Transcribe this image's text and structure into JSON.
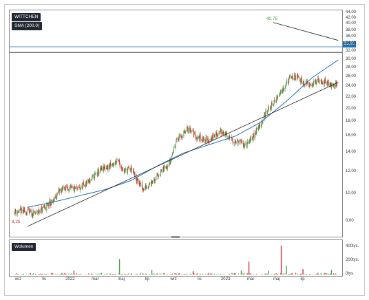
{
  "chart_data": [
    {
      "type": "candlestick",
      "series": [
        {
          "name": "WITTCHEN",
          "kind": "daily candles",
          "x": [
            "2021-10-01",
            "2021-10-15",
            "2021-11-01",
            "2021-11-15",
            "2021-12-01",
            "2021-12-15",
            "2022-01-01",
            "2022-01-15",
            "2022-02-01",
            "2022-02-15",
            "2022-03-01",
            "2022-03-15",
            "2022-04-01",
            "2022-04-15",
            "2022-05-01",
            "2022-05-15",
            "2022-06-01",
            "2022-06-15",
            "2022-07-01",
            "2022-07-15",
            "2022-08-01",
            "2022-08-15",
            "2022-09-01",
            "2022-09-15",
            "2022-10-01",
            "2022-10-15",
            "2022-11-01",
            "2022-11-15",
            "2022-12-01",
            "2022-12-15",
            "2023-01-01",
            "2023-01-15",
            "2023-02-01",
            "2023-02-15",
            "2023-03-01",
            "2023-03-15",
            "2023-04-01",
            "2023-04-15",
            "2023-05-01",
            "2023-05-15",
            "2023-06-01",
            "2023-06-15",
            "2023-07-01",
            "2023-07-15",
            "2023-08-01",
            "2023-08-15",
            "2023-09-01",
            "2023-09-15"
          ],
          "values": [
            8.7,
            8.5,
            8.8,
            9.1,
            9.5,
            10.3,
            10.6,
            10.4,
            10.5,
            10.9,
            11.4,
            12.0,
            12.4,
            12.6,
            13.2,
            12.1,
            12.4,
            11.2,
            10.4,
            11.0,
            11.6,
            12.2,
            13.1,
            15.5,
            16.3,
            17.2,
            16.0,
            15.8,
            15.5,
            16.2,
            16.8,
            15.9,
            15.4,
            15.2,
            15.0,
            16.0,
            17.8,
            19.6,
            21.0,
            22.6,
            24.9,
            26.2,
            25.8,
            24.7,
            24.8,
            25.2,
            25.0,
            24.6
          ]
        },
        {
          "name": "SMA (200,0)",
          "x": [
            "2021-10-01",
            "2021-12-01",
            "2022-02-01",
            "2022-04-01",
            "2022-06-01",
            "2022-08-01",
            "2022-10-01",
            "2022-12-01",
            "2023-02-01",
            "2023-04-01",
            "2023-06-01",
            "2023-08-01",
            "2023-10-01"
          ],
          "values": [
            9.0,
            9.4,
            9.9,
            10.4,
            11.2,
            12.6,
            14.0,
            15.0,
            16.1,
            18.0,
            21.4,
            26.0,
            30.0
          ]
        },
        {
          "name": "",
          "x": [
            "2021-10-01",
            "2023-10-01"
          ],
          "values": [
            7.7,
            25.0
          ]
        },
        {
          "name": "",
          "x": [
            "2023-05-01",
            "2023-10-01"
          ],
          "values": [
            40.75,
            35.2
          ]
        }
      ],
      "annotations": {
        "high": "40,75",
        "low": "8,26"
      },
      "horizontal_levels": [
        33.4,
        31.9
      ],
      "ylim": [
        7.0,
        44.0
      ],
      "y_scale": "log",
      "y_ticks": [
        "44,00",
        "42,00",
        "40,00",
        "38,00",
        "36,00",
        "34,00",
        "32,00",
        "30,00",
        "28,00",
        "26,00",
        "24,00",
        "22,00",
        "20,00",
        "18,00",
        "16,00",
        "14,00",
        "12,00",
        "10,00",
        "8,00"
      ],
      "last_price": "33,90",
      "legend": [
        "WITTCHEN",
        "SMA (200,0)"
      ],
      "legend_position": "top-left",
      "grid": false
    },
    {
      "type": "bar",
      "series": [
        {
          "name": "Wolumen"
        }
      ],
      "y_ticks": [
        "400tys.",
        "200tys.",
        "0tys."
      ],
      "ylim": [
        0,
        450000
      ],
      "spikes": [
        {
          "x": "2022-05-05",
          "value": 230000
        },
        {
          "x": "2022-01-18",
          "value": 60000
        },
        {
          "x": "2022-07-20",
          "value": 70000
        },
        {
          "x": "2022-10-25",
          "value": 50000
        },
        {
          "x": "2023-02-15",
          "value": 60000
        },
        {
          "x": "2023-03-05",
          "value": 190000
        },
        {
          "x": "2023-04-20",
          "value": 60000
        },
        {
          "x": "2023-05-20",
          "value": 430000
        },
        {
          "x": "2023-06-01",
          "value": 130000
        },
        {
          "x": "2023-07-10",
          "value": 80000
        },
        {
          "x": "2023-09-15",
          "value": 70000
        }
      ],
      "legend_position": "top-left"
    }
  ],
  "x_ticks": [
    "wrz",
    "lis",
    "2022",
    "mar",
    "maj",
    "lip",
    "wrz",
    "lis",
    "2023",
    "mar",
    "maj",
    "lip"
  ],
  "colors": {
    "up": "#49a04a",
    "down": "#d63333",
    "sma": "#1f6fb5",
    "trend": "#222222",
    "level": "#1f6fb5",
    "annot_high": "#3c9a3c",
    "annot_low": "#d63333"
  }
}
